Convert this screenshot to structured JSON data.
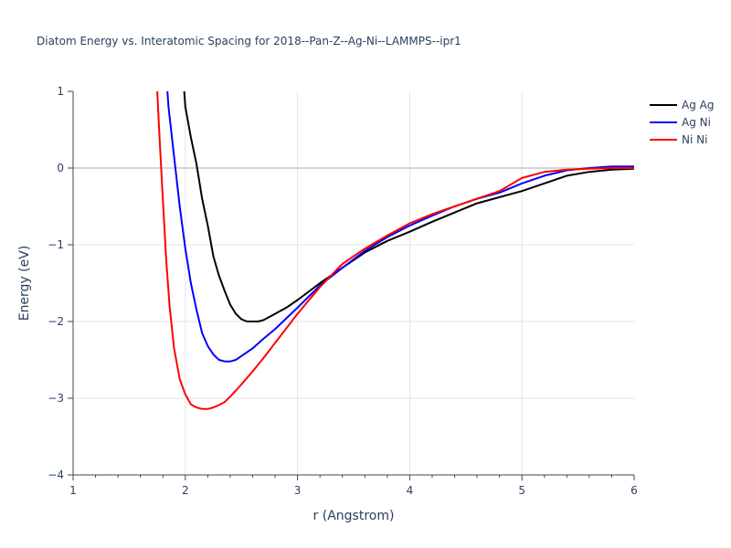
{
  "chart_data": {
    "type": "line",
    "title": "Diatom Energy vs. Interatomic Spacing for 2018--Pan-Z--Ag-Ni--LAMMPS--ipr1",
    "xlabel": "r (Angstrom)",
    "ylabel": "Energy (eV)",
    "xlim": [
      1,
      6
    ],
    "ylim": [
      -4,
      1
    ],
    "xticks": [
      1,
      2,
      3,
      4,
      5,
      6
    ],
    "xtick_labels": [
      "1",
      "2",
      "3",
      "4",
      "5",
      "6"
    ],
    "yticks": [
      -4,
      -3,
      -2,
      -1,
      0,
      1
    ],
    "ytick_labels": [
      "−4",
      "−3",
      "−2",
      "−1",
      "0",
      "1"
    ],
    "grid": true,
    "legend_position": "top-right",
    "series": [
      {
        "name": "Ag Ag",
        "color": "#000000",
        "x": [
          1.99,
          2.0,
          2.05,
          2.1,
          2.15,
          2.2,
          2.25,
          2.3,
          2.35,
          2.4,
          2.45,
          2.5,
          2.55,
          2.6,
          2.65,
          2.7,
          2.8,
          2.9,
          3.0,
          3.2,
          3.4,
          3.6,
          3.8,
          4.0,
          4.2,
          4.4,
          4.6,
          4.8,
          5.0,
          5.2,
          5.4,
          5.6,
          5.8,
          6.0
        ],
        "y": [
          1.0,
          0.8,
          0.4,
          0.05,
          -0.4,
          -0.75,
          -1.15,
          -1.4,
          -1.6,
          -1.78,
          -1.9,
          -1.97,
          -2.0,
          -2.0,
          -2.0,
          -1.98,
          -1.9,
          -1.82,
          -1.72,
          -1.5,
          -1.3,
          -1.1,
          -0.95,
          -0.83,
          -0.7,
          -0.58,
          -0.46,
          -0.38,
          -0.3,
          -0.2,
          -0.1,
          -0.05,
          -0.02,
          -0.01
        ]
      },
      {
        "name": "Ag Ni",
        "color": "#0000ff",
        "x": [
          1.84,
          1.85,
          1.9,
          1.95,
          2.0,
          2.05,
          2.1,
          2.15,
          2.2,
          2.25,
          2.3,
          2.35,
          2.4,
          2.45,
          2.5,
          2.6,
          2.7,
          2.8,
          3.0,
          3.2,
          3.4,
          3.6,
          3.8,
          4.0,
          4.2,
          4.4,
          4.6,
          4.8,
          5.0,
          5.2,
          5.4,
          5.6,
          5.8,
          6.0
        ],
        "y": [
          1.0,
          0.8,
          0.15,
          -0.5,
          -1.05,
          -1.5,
          -1.85,
          -2.15,
          -2.32,
          -2.43,
          -2.5,
          -2.52,
          -2.52,
          -2.5,
          -2.45,
          -2.35,
          -2.22,
          -2.1,
          -1.82,
          -1.53,
          -1.3,
          -1.08,
          -0.9,
          -0.75,
          -0.62,
          -0.5,
          -0.4,
          -0.32,
          -0.2,
          -0.1,
          -0.03,
          0.0,
          0.02,
          0.02
        ]
      },
      {
        "name": "Ni Ni",
        "color": "#ff0000",
        "x": [
          1.75,
          1.77,
          1.8,
          1.83,
          1.86,
          1.9,
          1.95,
          2.0,
          2.05,
          2.1,
          2.15,
          2.2,
          2.25,
          2.3,
          2.35,
          2.4,
          2.5,
          2.6,
          2.7,
          2.8,
          3.0,
          3.2,
          3.4,
          3.6,
          3.8,
          4.0,
          4.2,
          4.4,
          4.6,
          4.8,
          5.0,
          5.2,
          5.4,
          5.6,
          5.8,
          6.0
        ],
        "y": [
          1.0,
          0.4,
          -0.4,
          -1.2,
          -1.8,
          -2.35,
          -2.75,
          -2.95,
          -3.08,
          -3.12,
          -3.14,
          -3.14,
          -3.12,
          -3.09,
          -3.05,
          -2.98,
          -2.82,
          -2.65,
          -2.47,
          -2.28,
          -1.9,
          -1.55,
          -1.25,
          -1.05,
          -0.88,
          -0.72,
          -0.6,
          -0.5,
          -0.4,
          -0.3,
          -0.13,
          -0.05,
          -0.02,
          -0.01,
          0.0,
          0.0
        ]
      }
    ]
  }
}
